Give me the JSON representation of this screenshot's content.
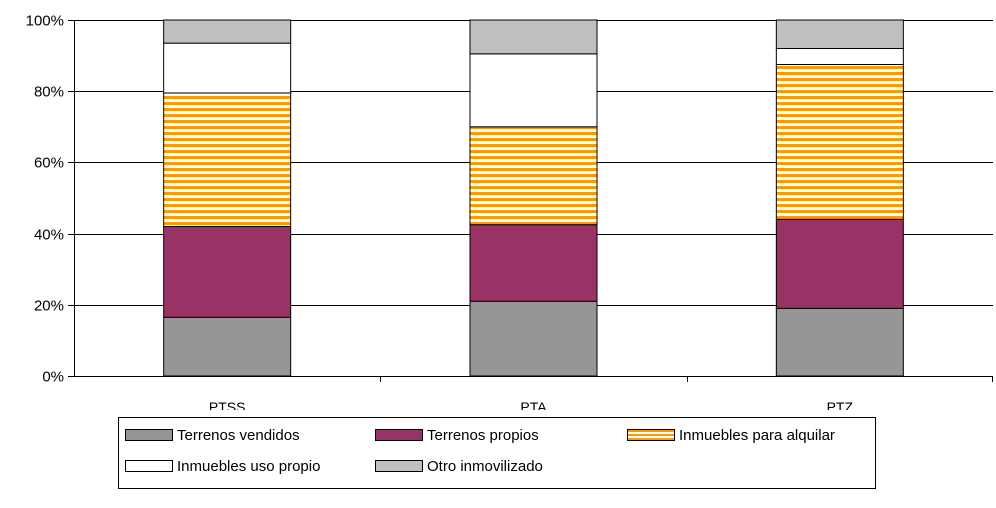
{
  "chart_data": {
    "type": "bar",
    "stacked": true,
    "percent": true,
    "categories": [
      "PTSS",
      "PTA",
      "PTZ"
    ],
    "series": [
      {
        "name": "Terrenos vendidos",
        "values": [
          16.5,
          21,
          19
        ],
        "color": "#969696",
        "pattern": "solid"
      },
      {
        "name": "Terrenos propios",
        "values": [
          25.5,
          21.5,
          25
        ],
        "color": "#993366",
        "pattern": "solid"
      },
      {
        "name": "Inmuebles para alquilar",
        "values": [
          37.5,
          27.5,
          43.5
        ],
        "color": "#ff9900",
        "pattern": "horizontal-stripes"
      },
      {
        "name": "Inmuebles uso propio",
        "values": [
          14,
          20.5,
          4.5
        ],
        "color": "#ffffff",
        "pattern": "solid"
      },
      {
        "name": "Otro inmovilizado",
        "values": [
          6.5,
          9.5,
          8
        ],
        "color": "#c0c0c0",
        "pattern": "solid"
      }
    ],
    "ylim": [
      0,
      100
    ],
    "yticks": [
      "0%",
      "20%",
      "40%",
      "60%",
      "80%",
      "100%"
    ],
    "grid": true,
    "legend_position": "bottom",
    "title": "",
    "xlabel": "",
    "ylabel": ""
  }
}
